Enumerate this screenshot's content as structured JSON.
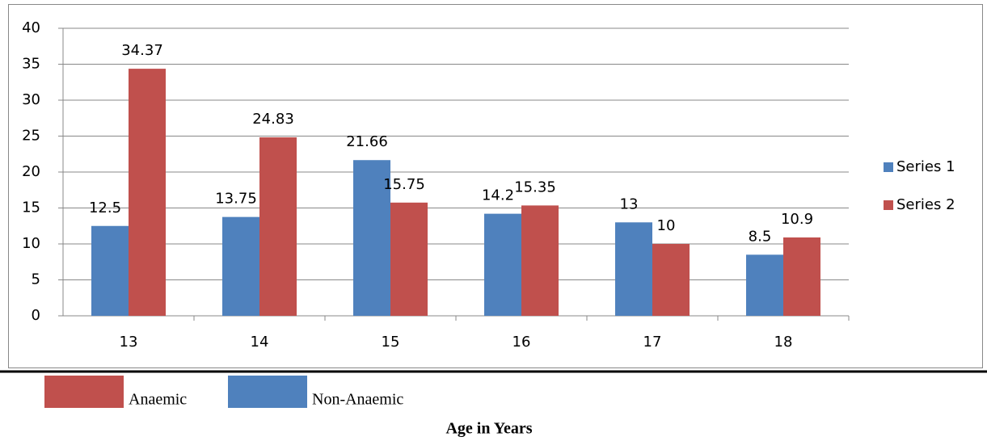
{
  "chart_data": {
    "type": "bar",
    "categories": [
      "13",
      "14",
      "15",
      "16",
      "17",
      "18"
    ],
    "series": [
      {
        "name": "Series 1",
        "color": "#4f81bd",
        "values": [
          12.5,
          13.75,
          21.66,
          14.2,
          13,
          8.5
        ]
      },
      {
        "name": "Series 2",
        "color": "#c0504d",
        "values": [
          34.37,
          24.83,
          15.75,
          15.35,
          10,
          10.9
        ]
      }
    ],
    "ylim": [
      0,
      40
    ],
    "yticks": [
      0,
      5,
      10,
      15,
      20,
      25,
      30,
      35,
      40
    ],
    "grid": true,
    "legend": "right",
    "footer_legend": [
      {
        "name": "Anaemic",
        "color": "#c0504d"
      },
      {
        "name": "Non-Anaemic",
        "color": "#4f81bd"
      }
    ],
    "xlabel": "Age in Years"
  }
}
